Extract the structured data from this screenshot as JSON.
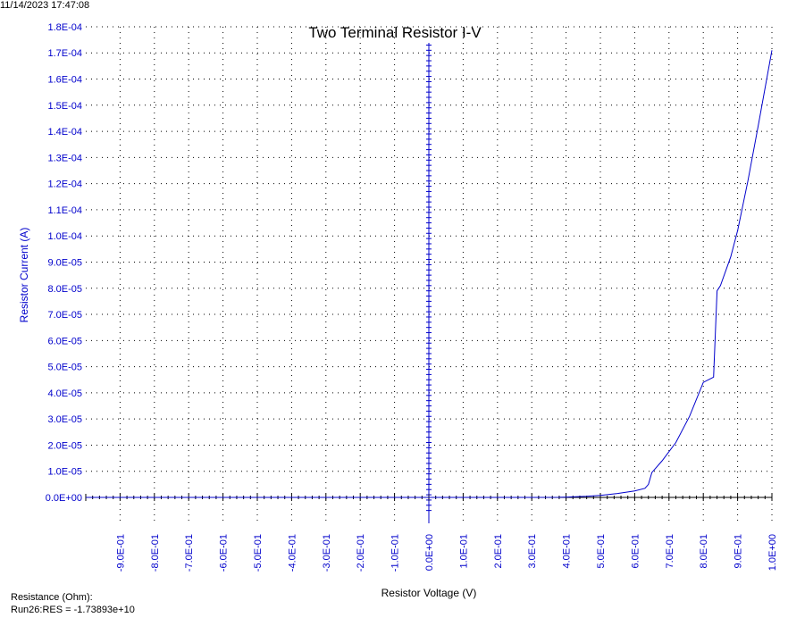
{
  "timestamp": "11/14/2023 17:47:08",
  "footer": {
    "resistance_label": "Resistance (Ohm):",
    "run_result": "Run26:RES = -1.73893e+10"
  },
  "colors": {
    "series": "#0000CC",
    "axis_text": "#0000CC",
    "grid": "#000000",
    "axis": "#000000",
    "background": "#FFFFFF"
  },
  "chart_data": {
    "type": "line",
    "title": "Two Terminal Resistor I-V",
    "xlabel": "Resistor Voltage (V)",
    "ylabel": "Resistor Current (A)",
    "xlim": [
      -1.0,
      1.0
    ],
    "ylim": [
      -5e-06,
      0.00018
    ],
    "grid": true,
    "x_ticks": [
      "-9.0E-01",
      "-8.0E-01",
      "-7.0E-01",
      "-6.0E-01",
      "-5.0E-01",
      "-4.0E-01",
      "-3.0E-01",
      "-2.0E-01",
      "-1.0E-01",
      "0.0E+00",
      "1.0E-01",
      "2.0E-01",
      "3.0E-01",
      "4.0E-01",
      "5.0E-01",
      "6.0E-01",
      "7.0E-01",
      "8.0E-01",
      "9.0E-01",
      "1.0E+00"
    ],
    "y_ticks": [
      "0.0E+00",
      "1.0E-05",
      "2.0E-05",
      "3.0E-05",
      "4.0E-05",
      "5.0E-05",
      "6.0E-05",
      "7.0E-05",
      "8.0E-05",
      "9.0E-05",
      "1.0E-04",
      "1.1E-04",
      "1.2E-04",
      "1.3E-04",
      "1.4E-04",
      "1.5E-04",
      "1.6E-04",
      "1.7E-04",
      "1.8E-04"
    ],
    "series": [
      {
        "x": [
          -1.0,
          -0.5,
          0.0,
          0.3,
          0.38,
          0.42,
          0.46,
          0.5,
          0.55,
          0.6,
          0.63,
          0.64,
          0.65,
          0.68,
          0.72,
          0.76,
          0.8,
          0.83,
          0.84,
          0.85,
          0.88,
          0.9,
          0.93,
          0.96,
          1.0
        ],
        "y": [
          0,
          0,
          0,
          0,
          5e-08,
          2e-07,
          4e-07,
          8e-07,
          1.5e-06,
          2.5e-06,
          3.5e-06,
          5e-06,
          9.5e-06,
          1.4e-05,
          2.1e-05,
          3.1e-05,
          4.4e-05,
          4.6e-05,
          7.9e-05,
          8.1e-05,
          9.2e-05,
          0.000102,
          0.000121,
          0.000142,
          0.000171
        ]
      }
    ]
  }
}
